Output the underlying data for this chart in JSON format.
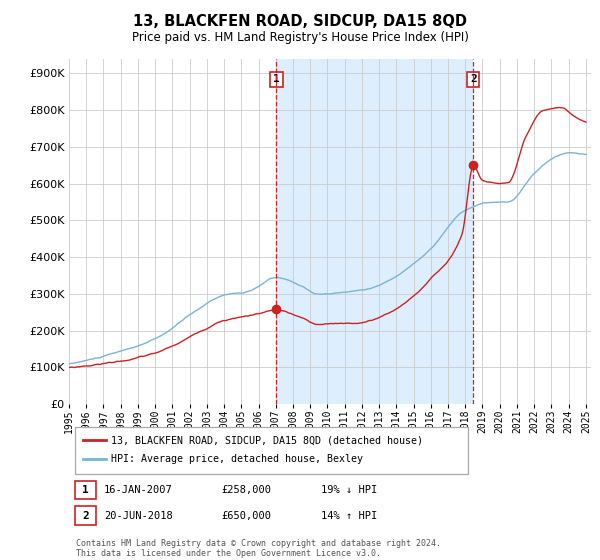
{
  "title": "13, BLACKFEN ROAD, SIDCUP, DA15 8QD",
  "subtitle": "Price paid vs. HM Land Registry's House Price Index (HPI)",
  "ytick_values": [
    0,
    100000,
    200000,
    300000,
    400000,
    500000,
    600000,
    700000,
    800000,
    900000
  ],
  "ylim": [
    0,
    940000
  ],
  "xlim_start": 1995.0,
  "xlim_end": 2025.3,
  "background_color": "#ffffff",
  "plot_bg_color": "#ffffff",
  "grid_color": "#cccccc",
  "hpi_line_color": "#7ab4d8",
  "price_line_color": "#cc2222",
  "sale1_date": 2007.04,
  "sale1_price": 258000,
  "sale1_label": "1",
  "sale2_date": 2018.47,
  "sale2_price": 650000,
  "sale2_label": "2",
  "highlight_color": "#ddeeff",
  "legend_price_label": "13, BLACKFEN ROAD, SIDCUP, DA15 8QD (detached house)",
  "legend_hpi_label": "HPI: Average price, detached house, Bexley",
  "table_row1": [
    "1",
    "16-JAN-2007",
    "£258,000",
    "19% ↓ HPI"
  ],
  "table_row2": [
    "2",
    "20-JUN-2018",
    "£650,000",
    "14% ↑ HPI"
  ],
  "footer": "Contains HM Land Registry data © Crown copyright and database right 2024.\nThis data is licensed under the Open Government Licence v3.0."
}
